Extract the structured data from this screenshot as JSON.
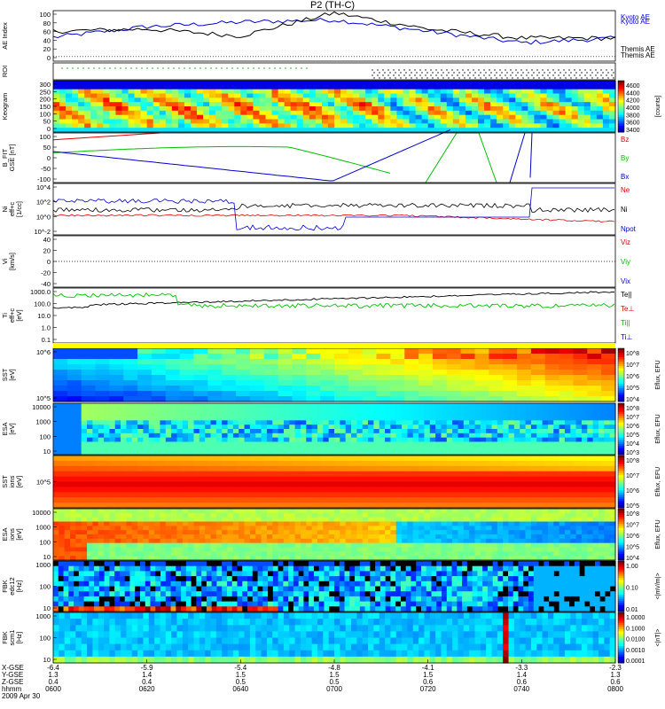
{
  "title": "P2 (TH-C)",
  "colors": {
    "red": "#e00000",
    "green": "#00c000",
    "blue": "#0000d0",
    "black": "#000000"
  },
  "footer_labels": [
    "X-GSE",
    "Y-GSE",
    "Z-GSE",
    "hhmm",
    "2009 Apr 30"
  ],
  "x_columns": [
    {
      "xgse": "-6.4",
      "ygse": "1.3",
      "zgse": "0.4",
      "hhmm": "0600"
    },
    {
      "xgse": "-5.9",
      "ygse": "1.4",
      "zgse": "0.4",
      "hhmm": "0620"
    },
    {
      "xgse": "-5.4",
      "ygse": "1.5",
      "zgse": "0.5",
      "hhmm": "0640"
    },
    {
      "xgse": "-4.8",
      "ygse": "1.5",
      "zgse": "0.5",
      "hhmm": "0700"
    },
    {
      "xgse": "-4.1",
      "ygse": "1.5",
      "zgse": "0.6",
      "hhmm": "0720"
    },
    {
      "xgse": "-3.3",
      "ygse": "1.4",
      "zgse": "0.6",
      "hhmm": "0740"
    },
    {
      "xgse": "-2.3",
      "ygse": "1.3",
      "zgse": "0.6",
      "hhmm": "0800"
    }
  ],
  "chart_data": [
    {
      "type": "line",
      "panel": "ae",
      "ylabel": "AE Index",
      "yticks": [
        "100",
        "80",
        "60",
        "40",
        "20",
        "0"
      ],
      "ylim": [
        -10,
        100
      ],
      "x": [
        "0600",
        "0620",
        "0640",
        "0700",
        "0720",
        "0740",
        "0800"
      ],
      "series": [
        {
          "name": "Kyoto AE",
          "color": "#0000d0",
          "values": [
            42,
            65,
            75,
            80,
            55,
            30,
            40
          ]
        },
        {
          "name": "Themis AE",
          "color": "#000000",
          "values": [
            55,
            60,
            45,
            95,
            60,
            40,
            40
          ]
        }
      ]
    },
    {
      "type": "line",
      "panel": "roi",
      "ylabel": "ROI",
      "yticks": []
    },
    {
      "type": "heatmap",
      "panel": "keogram",
      "ylabel": "Keogram",
      "yticks": [
        "300",
        "250",
        "200",
        "150",
        "100",
        "50",
        "0"
      ],
      "ylim": [
        0,
        300
      ],
      "colorbar_ticks": [
        "4600",
        "4400",
        "4200",
        "4000",
        "3800",
        "3600",
        "3400"
      ],
      "colorbar_label": "[counts]"
    },
    {
      "type": "line",
      "panel": "bfit",
      "ylabel": "B_FIT",
      "unit_label": "GSE [nT]",
      "yticks": [
        "100",
        "50",
        "0",
        "-50",
        "-100"
      ],
      "ylim": [
        -100,
        100
      ],
      "series": [
        {
          "name": "Bz",
          "color": "#e00000"
        },
        {
          "name": "By",
          "color": "#00c000"
        },
        {
          "name": "Bx",
          "color": "#0000d0"
        }
      ]
    },
    {
      "type": "line",
      "panel": "density",
      "ylabel": "Ni",
      "unit_label": "[1/cc]",
      "sub_label": "eff+c",
      "yticks": [
        "10^4",
        "10^2",
        "10^0",
        "10^-2"
      ],
      "series": [
        {
          "name": "Ne",
          "color": "#e00000"
        },
        {
          "name": "Ni",
          "color": "#000000"
        },
        {
          "name": "Npot",
          "color": "#0000d0"
        }
      ]
    },
    {
      "type": "line",
      "panel": "velocity",
      "ylabel": "Vi",
      "unit_label": "[km/s]",
      "yticks": [
        "40",
        "20",
        "0",
        "-20",
        "-40"
      ],
      "ylim": [
        -50,
        50
      ],
      "series": [
        {
          "name": "Viz",
          "color": "#e00000"
        },
        {
          "name": "Viy",
          "color": "#00c000"
        },
        {
          "name": "Vix",
          "color": "#0000d0"
        }
      ]
    },
    {
      "type": "line",
      "panel": "temperature",
      "ylabel": "Ti",
      "unit_label": "[eV]",
      "sub_label": "eff+c",
      "yticks": [
        "1000.0",
        "100.0",
        "10.0",
        "1.0",
        "0.1"
      ],
      "series": [
        {
          "name": "Te||",
          "color": "#000000"
        },
        {
          "name": "Te⊥",
          "color": "#e00000"
        },
        {
          "name": "Ti||",
          "color": "#00c000"
        },
        {
          "name": "Ti⊥",
          "color": "#0000d0"
        }
      ]
    },
    {
      "type": "heatmap",
      "panel": "sst_e",
      "ylabel": "SST",
      "unit_label": "[eV]",
      "yticks": [
        "10^6",
        "10^5"
      ],
      "colorbar_ticks": [
        "10^8",
        "10^7",
        "10^6",
        "10^5",
        "10^4"
      ],
      "colorbar_label": "Eflux, EFU"
    },
    {
      "type": "heatmap",
      "panel": "esa_e",
      "ylabel": "ESA",
      "unit_label": "[eV]",
      "yticks": [
        "10000",
        "1000",
        "100",
        "10"
      ],
      "colorbar_ticks": [
        "10^8",
        "10^7",
        "10^6",
        "10^5",
        "10^4",
        "10^3"
      ],
      "colorbar_label": "Eflux, EFU"
    },
    {
      "type": "heatmap",
      "panel": "sst_i",
      "ylabel": "SST",
      "unit_label": "[eV]",
      "sub_label": "ions",
      "yticks": [
        "10^5"
      ],
      "colorbar_ticks": [
        "10^8",
        "10^7",
        "10^6",
        "10^5"
      ],
      "colorbar_label": "Eflux, EFU"
    },
    {
      "type": "heatmap",
      "panel": "esa_i",
      "ylabel": "ESA",
      "unit_label": "[eV]",
      "sub_label": "ions",
      "yticks": [
        "10000",
        "1000",
        "100",
        "10"
      ],
      "colorbar_ticks": [
        "10^8",
        "10^7",
        "10^6",
        "10^5",
        "10^4"
      ],
      "colorbar_label": "Eflux, EFU"
    },
    {
      "type": "heatmap",
      "panel": "fbk1",
      "ylabel": "FBK",
      "unit_label": "[Hz]",
      "sub_label": "edc12",
      "yticks": [
        "1000",
        "100",
        "10"
      ],
      "colorbar_ticks": [
        "1.00",
        "0.10",
        "0.01"
      ],
      "colorbar_label": "<|mV/m|>"
    },
    {
      "type": "heatmap",
      "panel": "fbk2",
      "ylabel": "FBK",
      "unit_label": "[Hz]",
      "sub_label": "scm1",
      "yticks": [
        "1000",
        "100",
        "10"
      ],
      "colorbar_ticks": [
        "1.0000",
        "0.1000",
        "0.0100",
        "0.0010",
        "0.0001"
      ],
      "colorbar_label": "<|nT|>"
    }
  ]
}
